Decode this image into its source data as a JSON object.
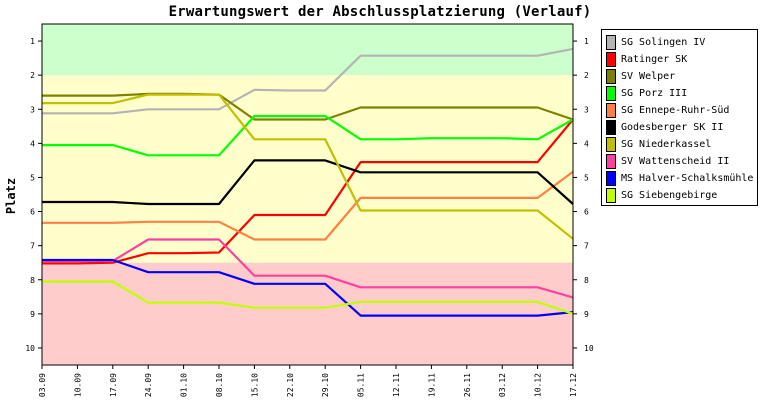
{
  "chart_data": {
    "type": "line",
    "title": "Erwartungswert der Abschlussplatzierung (Verlauf)",
    "ylabel": "Platz",
    "xlabel": "",
    "x": [
      "03.09",
      "10.09",
      "17.09",
      "24.09",
      "01.10",
      "08.10",
      "15.10",
      "22.10",
      "29.10",
      "05.11",
      "12.11",
      "19.11",
      "26.11",
      "03.12",
      "10.12",
      "17.12"
    ],
    "yticks": [
      1,
      2,
      3,
      4,
      5,
      6,
      7,
      8,
      9,
      10
    ],
    "ylim": [
      0.5,
      10.5
    ],
    "y_inverted": true,
    "grid": false,
    "legend_position": "right",
    "bands": [
      {
        "from": 0.5,
        "to": 2.0,
        "color": "#ccffcc"
      },
      {
        "from": 2.0,
        "to": 7.5,
        "color": "#ffffcc"
      },
      {
        "from": 7.5,
        "to": 10.5,
        "color": "#ffcccc"
      }
    ],
    "series": [
      {
        "name": "SG Solingen IV",
        "color": "#b4b4b4",
        "values": [
          3.12,
          3.12,
          3.12,
          3.0,
          3.0,
          3.0,
          2.43,
          2.45,
          2.45,
          1.43,
          1.43,
          1.43,
          1.43,
          1.43,
          1.43,
          1.23
        ]
      },
      {
        "name": "Ratinger SK",
        "color": "#ff0000",
        "values": [
          7.52,
          7.52,
          7.5,
          7.22,
          7.22,
          7.2,
          6.1,
          6.1,
          6.1,
          4.55,
          4.55,
          4.55,
          4.55,
          4.55,
          4.55,
          3.3
        ]
      },
      {
        "name": "SV Welper",
        "color": "#808000",
        "values": [
          2.6,
          2.6,
          2.6,
          2.55,
          2.55,
          2.57,
          3.3,
          3.3,
          3.3,
          2.95,
          2.95,
          2.95,
          2.95,
          2.95,
          2.95,
          3.3
        ]
      },
      {
        "name": "SG Porz III",
        "color": "#00ff00",
        "values": [
          4.05,
          4.05,
          4.05,
          4.35,
          4.35,
          4.35,
          3.2,
          3.2,
          3.2,
          3.88,
          3.88,
          3.85,
          3.85,
          3.85,
          3.88,
          3.3
        ]
      },
      {
        "name": "SG Ennepe-Ruhr-Süd",
        "color": "#ff8040",
        "values": [
          6.33,
          6.33,
          6.33,
          6.3,
          6.3,
          6.3,
          6.82,
          6.82,
          6.82,
          5.6,
          5.6,
          5.6,
          5.6,
          5.6,
          5.6,
          4.83
        ]
      },
      {
        "name": "Godesberger SK II",
        "color": "#000000",
        "values": [
          5.72,
          5.72,
          5.72,
          5.78,
          5.78,
          5.78,
          4.5,
          4.5,
          4.5,
          4.85,
          4.85,
          4.85,
          4.85,
          4.85,
          4.85,
          5.78
        ]
      },
      {
        "name": "SG Niederkassel",
        "color": "#c0c000",
        "values": [
          2.82,
          2.82,
          2.82,
          2.57,
          2.57,
          2.57,
          3.88,
          3.88,
          3.88,
          5.97,
          5.97,
          5.97,
          5.97,
          5.97,
          5.97,
          6.8
        ]
      },
      {
        "name": "SV Wattenscheid II",
        "color": "#ff40a0",
        "values": [
          7.45,
          7.45,
          7.45,
          6.82,
          6.82,
          6.82,
          7.88,
          7.88,
          7.88,
          8.22,
          8.22,
          8.22,
          8.22,
          8.22,
          8.22,
          8.52
        ]
      },
      {
        "name": "MS Halver-Schalksmühle",
        "color": "#0000ff",
        "values": [
          7.42,
          7.42,
          7.42,
          7.78,
          7.78,
          7.78,
          8.12,
          8.12,
          8.12,
          9.05,
          9.05,
          9.05,
          9.05,
          9.05,
          9.05,
          8.95
        ]
      },
      {
        "name": "SG Siebengebirge",
        "color": "#c0ff00",
        "values": [
          8.05,
          8.05,
          8.05,
          8.67,
          8.67,
          8.67,
          8.82,
          8.82,
          8.82,
          8.65,
          8.65,
          8.65,
          8.65,
          8.65,
          8.65,
          9.0
        ]
      }
    ]
  }
}
